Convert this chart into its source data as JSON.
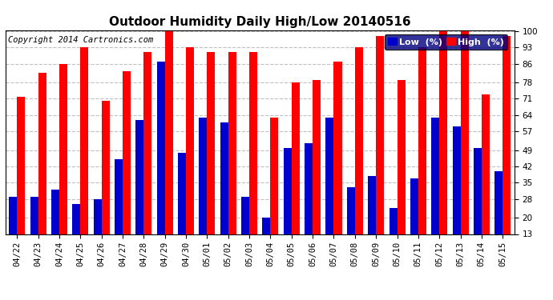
{
  "title": "Outdoor Humidity Daily High/Low 20140516",
  "copyright": "Copyright 2014 Cartronics.com",
  "legend_low": "Low  (%)",
  "legend_high": "High  (%)",
  "categories": [
    "04/22",
    "04/23",
    "04/24",
    "04/25",
    "04/26",
    "04/27",
    "04/28",
    "04/29",
    "04/30",
    "05/01",
    "05/02",
    "05/03",
    "05/04",
    "05/05",
    "05/06",
    "05/07",
    "05/08",
    "05/09",
    "05/10",
    "05/11",
    "05/12",
    "05/13",
    "05/14",
    "05/15"
  ],
  "high_values": [
    72,
    82,
    86,
    93,
    70,
    83,
    91,
    100,
    93,
    91,
    91,
    91,
    63,
    78,
    79,
    87,
    93,
    98,
    79,
    93,
    100,
    100,
    73,
    98
  ],
  "low_values": [
    29,
    29,
    32,
    26,
    28,
    45,
    62,
    87,
    48,
    63,
    61,
    29,
    20,
    50,
    52,
    63,
    33,
    38,
    24,
    37,
    63,
    59,
    50,
    40
  ],
  "ylim_min": 13,
  "ylim_max": 100,
  "yticks": [
    13,
    20,
    28,
    35,
    42,
    49,
    57,
    64,
    71,
    78,
    86,
    93,
    100
  ],
  "bar_width": 0.38,
  "high_color": "#ff0000",
  "low_color": "#0000cc",
  "bg_color": "#ffffff",
  "grid_color": "#c0c0c0",
  "title_fontsize": 11,
  "copyright_fontsize": 7.5,
  "tick_fontsize": 7.5,
  "legend_fontsize": 8
}
